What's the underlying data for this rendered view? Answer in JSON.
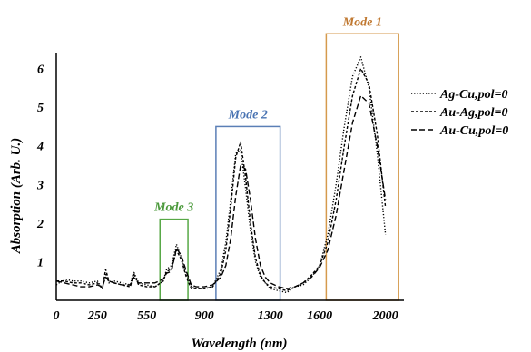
{
  "chart_data": {
    "type": "line",
    "title": "",
    "xlabel": "Wavelength (nm)",
    "ylabel": "Absorption (Arb. U.)",
    "xlim": [
      0,
      2250
    ],
    "ylim": [
      0,
      7
    ],
    "x_ticks": [
      {
        "value": 0,
        "label": "0"
      },
      {
        "value": 250,
        "label": "250"
      },
      {
        "value": 550,
        "label": "550"
      },
      {
        "value": 900,
        "label": "900"
      },
      {
        "value": 1300,
        "label": "1300"
      },
      {
        "value": 1600,
        "label": "1600"
      },
      {
        "value": 2000,
        "label": "2000"
      }
    ],
    "y_ticks": [
      {
        "value": 1,
        "label": "1"
      },
      {
        "value": 2,
        "label": "2"
      },
      {
        "value": 3,
        "label": "3"
      },
      {
        "value": 4,
        "label": "4"
      },
      {
        "value": 5,
        "label": "5"
      },
      {
        "value": 6,
        "label": "6"
      }
    ],
    "grid": false,
    "legend_position": "right",
    "series": [
      {
        "name": "Ag-Cu,pol=0",
        "style": "dotted",
        "x": [
          0,
          50,
          100,
          150,
          200,
          250,
          280,
          300,
          320,
          350,
          400,
          450,
          470,
          500,
          550,
          600,
          650,
          670,
          700,
          730,
          760,
          790,
          820,
          850,
          900,
          950,
          1000,
          1030,
          1060,
          1090,
          1120,
          1150,
          1180,
          1210,
          1240,
          1270,
          1300,
          1350,
          1400,
          1450,
          1500,
          1550,
          1600,
          1650,
          1700,
          1750,
          1800,
          1850,
          1900,
          1950,
          2000
        ],
        "y": [
          0.4,
          0.55,
          0.5,
          0.5,
          0.45,
          0.5,
          0.3,
          0.7,
          0.45,
          0.5,
          0.45,
          0.4,
          0.75,
          0.45,
          0.4,
          0.35,
          0.5,
          0.8,
          0.9,
          1.45,
          1.1,
          0.7,
          0.35,
          0.3,
          0.3,
          0.35,
          0.8,
          1.5,
          2.6,
          3.8,
          3.9,
          2.9,
          1.8,
          1.0,
          0.6,
          0.45,
          0.3,
          0.25,
          0.2,
          0.35,
          0.4,
          0.6,
          0.9,
          1.7,
          3.0,
          4.5,
          5.8,
          6.3,
          5.5,
          3.8,
          1.7
        ]
      },
      {
        "name": "Au-Ag,pol=0",
        "style": "short-dash",
        "x": [
          0,
          50,
          100,
          150,
          200,
          250,
          280,
          300,
          320,
          350,
          400,
          450,
          470,
          500,
          550,
          600,
          650,
          670,
          700,
          730,
          760,
          790,
          820,
          850,
          900,
          950,
          1000,
          1030,
          1060,
          1090,
          1120,
          1150,
          1180,
          1210,
          1240,
          1270,
          1300,
          1350,
          1400,
          1450,
          1500,
          1550,
          1600,
          1650,
          1700,
          1750,
          1800,
          1850,
          1900,
          1950,
          2000
        ],
        "y": [
          0.5,
          0.5,
          0.45,
          0.45,
          0.4,
          0.45,
          0.3,
          0.8,
          0.5,
          0.45,
          0.4,
          0.35,
          0.7,
          0.4,
          0.35,
          0.35,
          0.5,
          0.75,
          0.8,
          1.3,
          1.05,
          0.6,
          0.3,
          0.3,
          0.3,
          0.35,
          0.7,
          1.3,
          2.4,
          3.7,
          4.1,
          3.2,
          2.0,
          1.1,
          0.65,
          0.45,
          0.35,
          0.3,
          0.25,
          0.35,
          0.45,
          0.65,
          0.9,
          1.5,
          2.6,
          4.0,
          5.3,
          6.0,
          5.6,
          4.3,
          2.4
        ]
      },
      {
        "name": "Au-Cu,pol=0",
        "style": "long-dash",
        "x": [
          0,
          50,
          100,
          150,
          200,
          250,
          280,
          300,
          320,
          350,
          400,
          450,
          470,
          500,
          550,
          600,
          650,
          670,
          700,
          730,
          760,
          790,
          820,
          850,
          900,
          950,
          1000,
          1030,
          1060,
          1090,
          1120,
          1150,
          1180,
          1210,
          1240,
          1270,
          1300,
          1350,
          1400,
          1450,
          1500,
          1550,
          1600,
          1650,
          1700,
          1750,
          1800,
          1850,
          1900,
          1950,
          2000
        ],
        "y": [
          0.5,
          0.45,
          0.4,
          0.35,
          0.35,
          0.4,
          0.35,
          0.6,
          0.5,
          0.45,
          0.4,
          0.4,
          0.6,
          0.45,
          0.45,
          0.45,
          0.55,
          0.7,
          0.75,
          1.35,
          1.15,
          0.75,
          0.4,
          0.35,
          0.35,
          0.4,
          0.6,
          0.9,
          1.6,
          2.7,
          3.5,
          3.4,
          2.6,
          1.6,
          0.9,
          0.6,
          0.45,
          0.35,
          0.3,
          0.35,
          0.45,
          0.6,
          0.85,
          1.3,
          2.2,
          3.4,
          4.6,
          5.3,
          5.1,
          4.0,
          2.6
        ]
      }
    ],
    "regions": [
      {
        "label": "Mode 1",
        "x_range": [
          1640,
          2080
        ],
        "y_range": [
          0,
          6.9
        ],
        "color": "#d59a4d",
        "label_color": "#c07830"
      },
      {
        "label": "Mode 2",
        "x_range": [
          970,
          1360
        ],
        "y_range": [
          0,
          4.5
        ],
        "color": "#5b7fb6",
        "label_color": "#4a74b3"
      },
      {
        "label": "Mode 3",
        "x_range": [
          630,
          800
        ],
        "y_range": [
          0,
          2.1
        ],
        "color": "#57a846",
        "label_color": "#4c9a3c"
      }
    ]
  }
}
